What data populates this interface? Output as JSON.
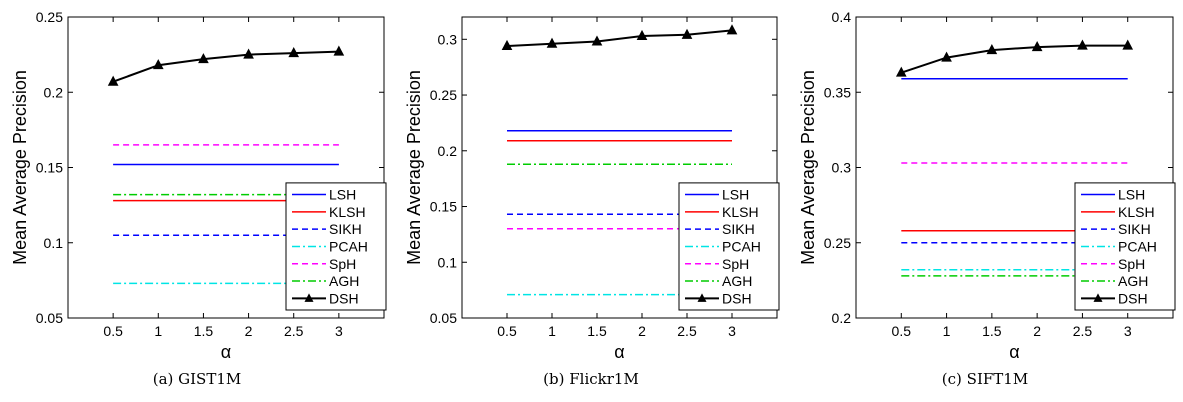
{
  "chart_data": [
    {
      "type": "line",
      "ylabel": "Mean Average Precision",
      "xlabel": "α",
      "caption": "(a)  GIST1M",
      "xlim": [
        0,
        3.5
      ],
      "ylim": [
        0.05,
        0.25
      ],
      "xticks": [
        0.5,
        1,
        1.5,
        2,
        2.5,
        3
      ],
      "xtick_labels": [
        "0.5",
        "1",
        "1.5",
        "2",
        "2.5",
        "3"
      ],
      "yticks": [
        0.05,
        0.1,
        0.15,
        0.2,
        0.25
      ],
      "ytick_labels": [
        "0.05",
        "0.1",
        "0.15",
        "0.2",
        "0.25"
      ],
      "legend": "bottom-right",
      "x": [
        0.5,
        1,
        1.5,
        2,
        2.5,
        3
      ],
      "series": [
        {
          "name": "LSH",
          "color": "#0000ff",
          "style": "solid",
          "values": [
            0.152,
            0.152,
            0.152,
            0.152,
            0.152,
            0.152
          ]
        },
        {
          "name": "KLSH",
          "color": "#ff0000",
          "style": "solid",
          "values": [
            0.128,
            0.128,
            0.128,
            0.128,
            0.128,
            0.128
          ]
        },
        {
          "name": "SIKH",
          "color": "#0000ff",
          "style": "dashed",
          "values": [
            0.105,
            0.105,
            0.105,
            0.105,
            0.105,
            0.105
          ]
        },
        {
          "name": "PCAH",
          "color": "#00e5e5",
          "style": "dashdot",
          "values": [
            0.073,
            0.073,
            0.073,
            0.073,
            0.073,
            0.073
          ]
        },
        {
          "name": "SpH",
          "color": "#ff00ff",
          "style": "dashed",
          "values": [
            0.165,
            0.165,
            0.165,
            0.165,
            0.165,
            0.165
          ]
        },
        {
          "name": "AGH",
          "color": "#00cc00",
          "style": "dashdot",
          "values": [
            0.132,
            0.132,
            0.132,
            0.132,
            0.132,
            0.132
          ]
        },
        {
          "name": "DSH",
          "color": "#000000",
          "style": "solid",
          "marker": "triangle",
          "values": [
            0.207,
            0.218,
            0.222,
            0.225,
            0.226,
            0.227
          ]
        }
      ]
    },
    {
      "type": "line",
      "ylabel": "Mean Average Precision",
      "xlabel": "α",
      "caption": "(b)  Flickr1M",
      "xlim": [
        0,
        3.5
      ],
      "ylim": [
        0.05,
        0.32
      ],
      "xticks": [
        0.5,
        1,
        1.5,
        2,
        2.5,
        3
      ],
      "xtick_labels": [
        "0.5",
        "1",
        "1.5",
        "2",
        "2.5",
        "3"
      ],
      "yticks": [
        0.05,
        0.1,
        0.15,
        0.2,
        0.25,
        0.3
      ],
      "ytick_labels": [
        "0.05",
        "0.1",
        "0.15",
        "0.2",
        "0.25",
        "0.3"
      ],
      "legend": "bottom-right",
      "x": [
        0.5,
        1,
        1.5,
        2,
        2.5,
        3
      ],
      "series": [
        {
          "name": "LSH",
          "color": "#0000ff",
          "style": "solid",
          "values": [
            0.218,
            0.218,
            0.218,
            0.218,
            0.218,
            0.218
          ]
        },
        {
          "name": "KLSH",
          "color": "#ff0000",
          "style": "solid",
          "values": [
            0.209,
            0.209,
            0.209,
            0.209,
            0.209,
            0.209
          ]
        },
        {
          "name": "SIKH",
          "color": "#0000ff",
          "style": "dashed",
          "values": [
            0.143,
            0.143,
            0.143,
            0.143,
            0.143,
            0.143
          ]
        },
        {
          "name": "PCAH",
          "color": "#00e5e5",
          "style": "dashdot",
          "values": [
            0.071,
            0.071,
            0.071,
            0.071,
            0.071,
            0.071
          ]
        },
        {
          "name": "SpH",
          "color": "#ff00ff",
          "style": "dashed",
          "values": [
            0.13,
            0.13,
            0.13,
            0.13,
            0.13,
            0.13
          ]
        },
        {
          "name": "AGH",
          "color": "#00cc00",
          "style": "dashdot",
          "values": [
            0.188,
            0.188,
            0.188,
            0.188,
            0.188,
            0.188
          ]
        },
        {
          "name": "DSH",
          "color": "#000000",
          "style": "solid",
          "marker": "triangle",
          "values": [
            0.294,
            0.296,
            0.298,
            0.303,
            0.304,
            0.308
          ]
        }
      ]
    },
    {
      "type": "line",
      "ylabel": "Mean Average Precision",
      "xlabel": "α",
      "caption": "(c)  SIFT1M",
      "xlim": [
        0,
        3.5
      ],
      "ylim": [
        0.2,
        0.4
      ],
      "xticks": [
        0.5,
        1,
        1.5,
        2,
        2.5,
        3
      ],
      "xtick_labels": [
        "0.5",
        "1",
        "1.5",
        "2",
        "2.5",
        "3"
      ],
      "yticks": [
        0.2,
        0.25,
        0.3,
        0.35,
        0.4
      ],
      "ytick_labels": [
        "0.2",
        "0.25",
        "0.3",
        "0.35",
        "0.4"
      ],
      "legend": "bottom-right",
      "x": [
        0.5,
        1,
        1.5,
        2,
        2.5,
        3
      ],
      "series": [
        {
          "name": "LSH",
          "color": "#0000ff",
          "style": "solid",
          "values": [
            0.359,
            0.359,
            0.359,
            0.359,
            0.359,
            0.359
          ]
        },
        {
          "name": "KLSH",
          "color": "#ff0000",
          "style": "solid",
          "values": [
            0.258,
            0.258,
            0.258,
            0.258,
            0.258,
            0.258
          ]
        },
        {
          "name": "SIKH",
          "color": "#0000ff",
          "style": "dashed",
          "values": [
            0.25,
            0.25,
            0.25,
            0.25,
            0.25,
            0.25
          ]
        },
        {
          "name": "PCAH",
          "color": "#00e5e5",
          "style": "dashdot",
          "values": [
            0.232,
            0.232,
            0.232,
            0.232,
            0.232,
            0.232
          ]
        },
        {
          "name": "SpH",
          "color": "#ff00ff",
          "style": "dashed",
          "values": [
            0.303,
            0.303,
            0.303,
            0.303,
            0.303,
            0.303
          ]
        },
        {
          "name": "AGH",
          "color": "#00cc00",
          "style": "dashdot",
          "values": [
            0.228,
            0.228,
            0.228,
            0.228,
            0.228,
            0.228
          ]
        },
        {
          "name": "DSH",
          "color": "#000000",
          "style": "solid",
          "marker": "triangle",
          "values": [
            0.363,
            0.373,
            0.378,
            0.38,
            0.381,
            0.381
          ]
        }
      ]
    }
  ]
}
